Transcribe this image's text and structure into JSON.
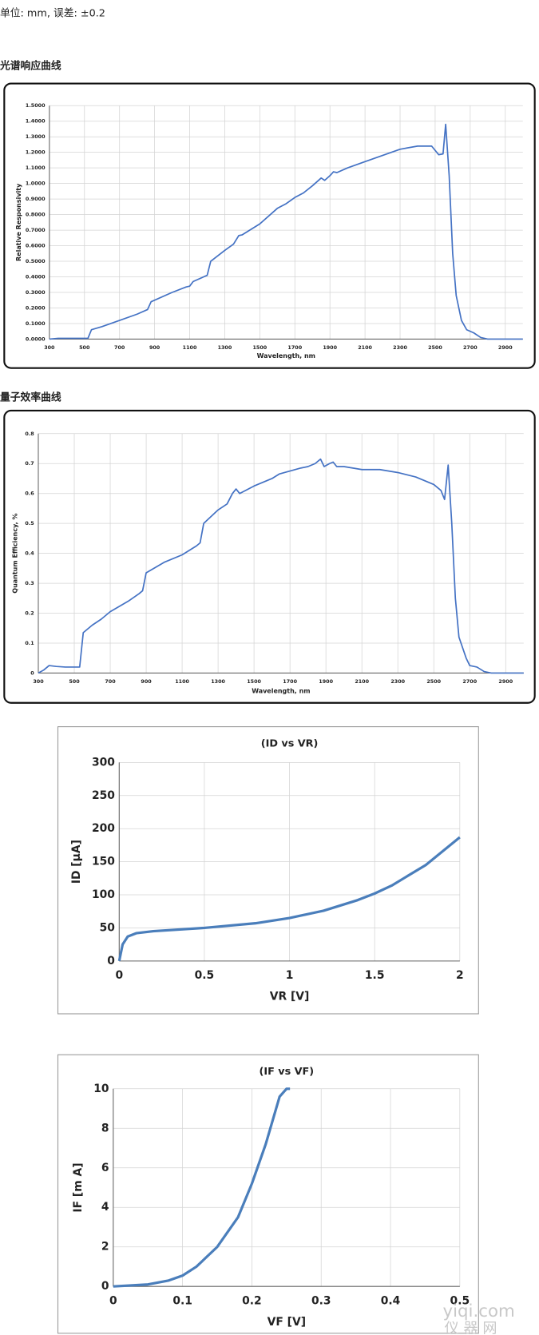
{
  "unit_note": "单位: mm, 误差: ±0.2",
  "headings": [
    "光谱响应曲线",
    "量子效率曲线"
  ],
  "chart_data": [
    {
      "type": "line",
      "x_label": "Wavelength, nm",
      "y_label": "Relative Responsivity",
      "x": [
        300,
        350,
        400,
        520,
        540,
        600,
        700,
        800,
        860,
        880,
        1000,
        1080,
        1100,
        1120,
        1180,
        1200,
        1220,
        1300,
        1350,
        1380,
        1400,
        1500,
        1600,
        1650,
        1700,
        1750,
        1800,
        1850,
        1870,
        1900,
        1920,
        1940,
        2000,
        2100,
        2200,
        2300,
        2400,
        2480,
        2520,
        2545,
        2560,
        2580,
        2600,
        2620,
        2650,
        2680,
        2720,
        2760,
        2800,
        3000
      ],
      "series": [
        {
          "color": "#4472c4",
          "values": [
            0,
            0.005,
            0.005,
            0.005,
            0.06,
            0.08,
            0.12,
            0.16,
            0.19,
            0.24,
            0.3,
            0.335,
            0.34,
            0.37,
            0.4,
            0.41,
            0.5,
            0.57,
            0.61,
            0.665,
            0.67,
            0.74,
            0.84,
            0.87,
            0.91,
            0.94,
            0.985,
            1.035,
            1.02,
            1.05,
            1.075,
            1.07,
            1.1,
            1.14,
            1.18,
            1.22,
            1.24,
            1.24,
            1.185,
            1.19,
            1.38,
            1.05,
            0.55,
            0.28,
            0.12,
            0.06,
            0.04,
            0.01,
            0,
            0
          ]
        }
      ],
      "xlim": [
        300,
        3000
      ],
      "ylim": [
        0,
        1.5
      ],
      "xticks": [
        300,
        500,
        700,
        900,
        1100,
        1300,
        1500,
        1700,
        1900,
        2100,
        2300,
        2500,
        2700,
        2900
      ],
      "yticks": [
        {
          "value": 0,
          "label": "0.0000"
        },
        {
          "value": 0.1,
          "label": "0.1000"
        },
        {
          "value": 0.2,
          "label": "0.2000"
        },
        {
          "value": 0.3,
          "label": "0.3000"
        },
        {
          "value": 0.4,
          "label": "0.4000"
        },
        {
          "value": 0.5,
          "label": "0.5000"
        },
        {
          "value": 0.6,
          "label": "0.6000"
        },
        {
          "value": 0.7,
          "label": "0.7000"
        },
        {
          "value": 0.8,
          "label": "0.8000"
        },
        {
          "value": 0.9,
          "label": "0.9000"
        },
        {
          "value": 1.0,
          "label": "1.0000"
        },
        {
          "value": 1.1,
          "label": "1.1000"
        },
        {
          "value": 1.2,
          "label": "1.2000"
        },
        {
          "value": 1.3,
          "label": "1.3000"
        },
        {
          "value": 1.4,
          "label": "1.4000"
        },
        {
          "value": 1.5,
          "label": "1.5000"
        }
      ],
      "grid": true
    },
    {
      "type": "line",
      "x_label": "Wavelength, nm",
      "y_label": "Quantum Efficiency, %",
      "x": [
        300,
        330,
        360,
        400,
        450,
        530,
        550,
        600,
        650,
        700,
        800,
        860,
        880,
        900,
        1000,
        1100,
        1180,
        1200,
        1220,
        1300,
        1350,
        1380,
        1400,
        1420,
        1500,
        1600,
        1640,
        1700,
        1760,
        1800,
        1840,
        1870,
        1890,
        1920,
        1940,
        1960,
        2000,
        2100,
        2200,
        2300,
        2400,
        2500,
        2540,
        2560,
        2580,
        2600,
        2620,
        2640,
        2680,
        2700,
        2740,
        2780,
        2820,
        3000
      ],
      "series": [
        {
          "color": "#4472c4",
          "values": [
            0,
            0.01,
            0.025,
            0.022,
            0.02,
            0.02,
            0.135,
            0.16,
            0.18,
            0.205,
            0.24,
            0.265,
            0.275,
            0.335,
            0.37,
            0.395,
            0.425,
            0.435,
            0.5,
            0.545,
            0.565,
            0.6,
            0.615,
            0.6,
            0.625,
            0.65,
            0.665,
            0.675,
            0.685,
            0.69,
            0.7,
            0.715,
            0.69,
            0.7,
            0.705,
            0.69,
            0.69,
            0.68,
            0.68,
            0.67,
            0.655,
            0.63,
            0.61,
            0.58,
            0.695,
            0.5,
            0.25,
            0.12,
            0.05,
            0.025,
            0.02,
            0.005,
            0,
            0
          ]
        }
      ],
      "xlim": [
        300,
        3000
      ],
      "ylim": [
        0,
        0.8
      ],
      "xticks": [
        300,
        500,
        700,
        900,
        1100,
        1300,
        1500,
        1700,
        1900,
        2100,
        2300,
        2500,
        2700,
        2900
      ],
      "yticks": [
        0,
        0.1,
        0.2,
        0.3,
        0.4,
        0.5,
        0.6,
        0.7,
        0.8
      ],
      "grid": true
    },
    {
      "type": "line",
      "title": "(ID vs VR)",
      "x_label": "VR [V]",
      "y_label": "ID [μA]",
      "x": [
        0,
        0.02,
        0.05,
        0.1,
        0.2,
        0.5,
        0.8,
        1,
        1.2,
        1.4,
        1.5,
        1.6,
        1.8,
        2
      ],
      "series": [
        {
          "color": "#4a7ebb",
          "values": [
            0,
            25,
            37,
            42,
            45,
            50,
            57,
            65,
            76,
            92,
            102,
            114,
            145,
            187
          ]
        }
      ],
      "xlim": [
        0,
        2
      ],
      "ylim": [
        0,
        300
      ],
      "xticks": [
        0,
        0.5,
        1,
        1.5,
        2
      ],
      "yticks": [
        0,
        50,
        100,
        150,
        200,
        250,
        300
      ],
      "grid": true
    },
    {
      "type": "line",
      "title": "(IF vs VF)",
      "x_label": "VF [V]",
      "y_label": "IF [m A]",
      "x": [
        0,
        0.05,
        0.08,
        0.1,
        0.12,
        0.15,
        0.18,
        0.2,
        0.22,
        0.24,
        0.25,
        0.255
      ],
      "series": [
        {
          "color": "#4a7ebb",
          "values": [
            0,
            0.1,
            0.3,
            0.55,
            1.0,
            2.0,
            3.5,
            5.2,
            7.2,
            9.6,
            10,
            10
          ]
        }
      ],
      "xlim": [
        0,
        0.5
      ],
      "ylim": [
        0,
        10
      ],
      "xticks": [
        0,
        0.1,
        0.2,
        0.3,
        0.4,
        0.5
      ],
      "yticks": [
        0,
        2,
        4,
        6,
        8,
        10
      ],
      "grid": true
    }
  ],
  "watermark": [
    "yiqi.com",
    "仪 器 网"
  ]
}
